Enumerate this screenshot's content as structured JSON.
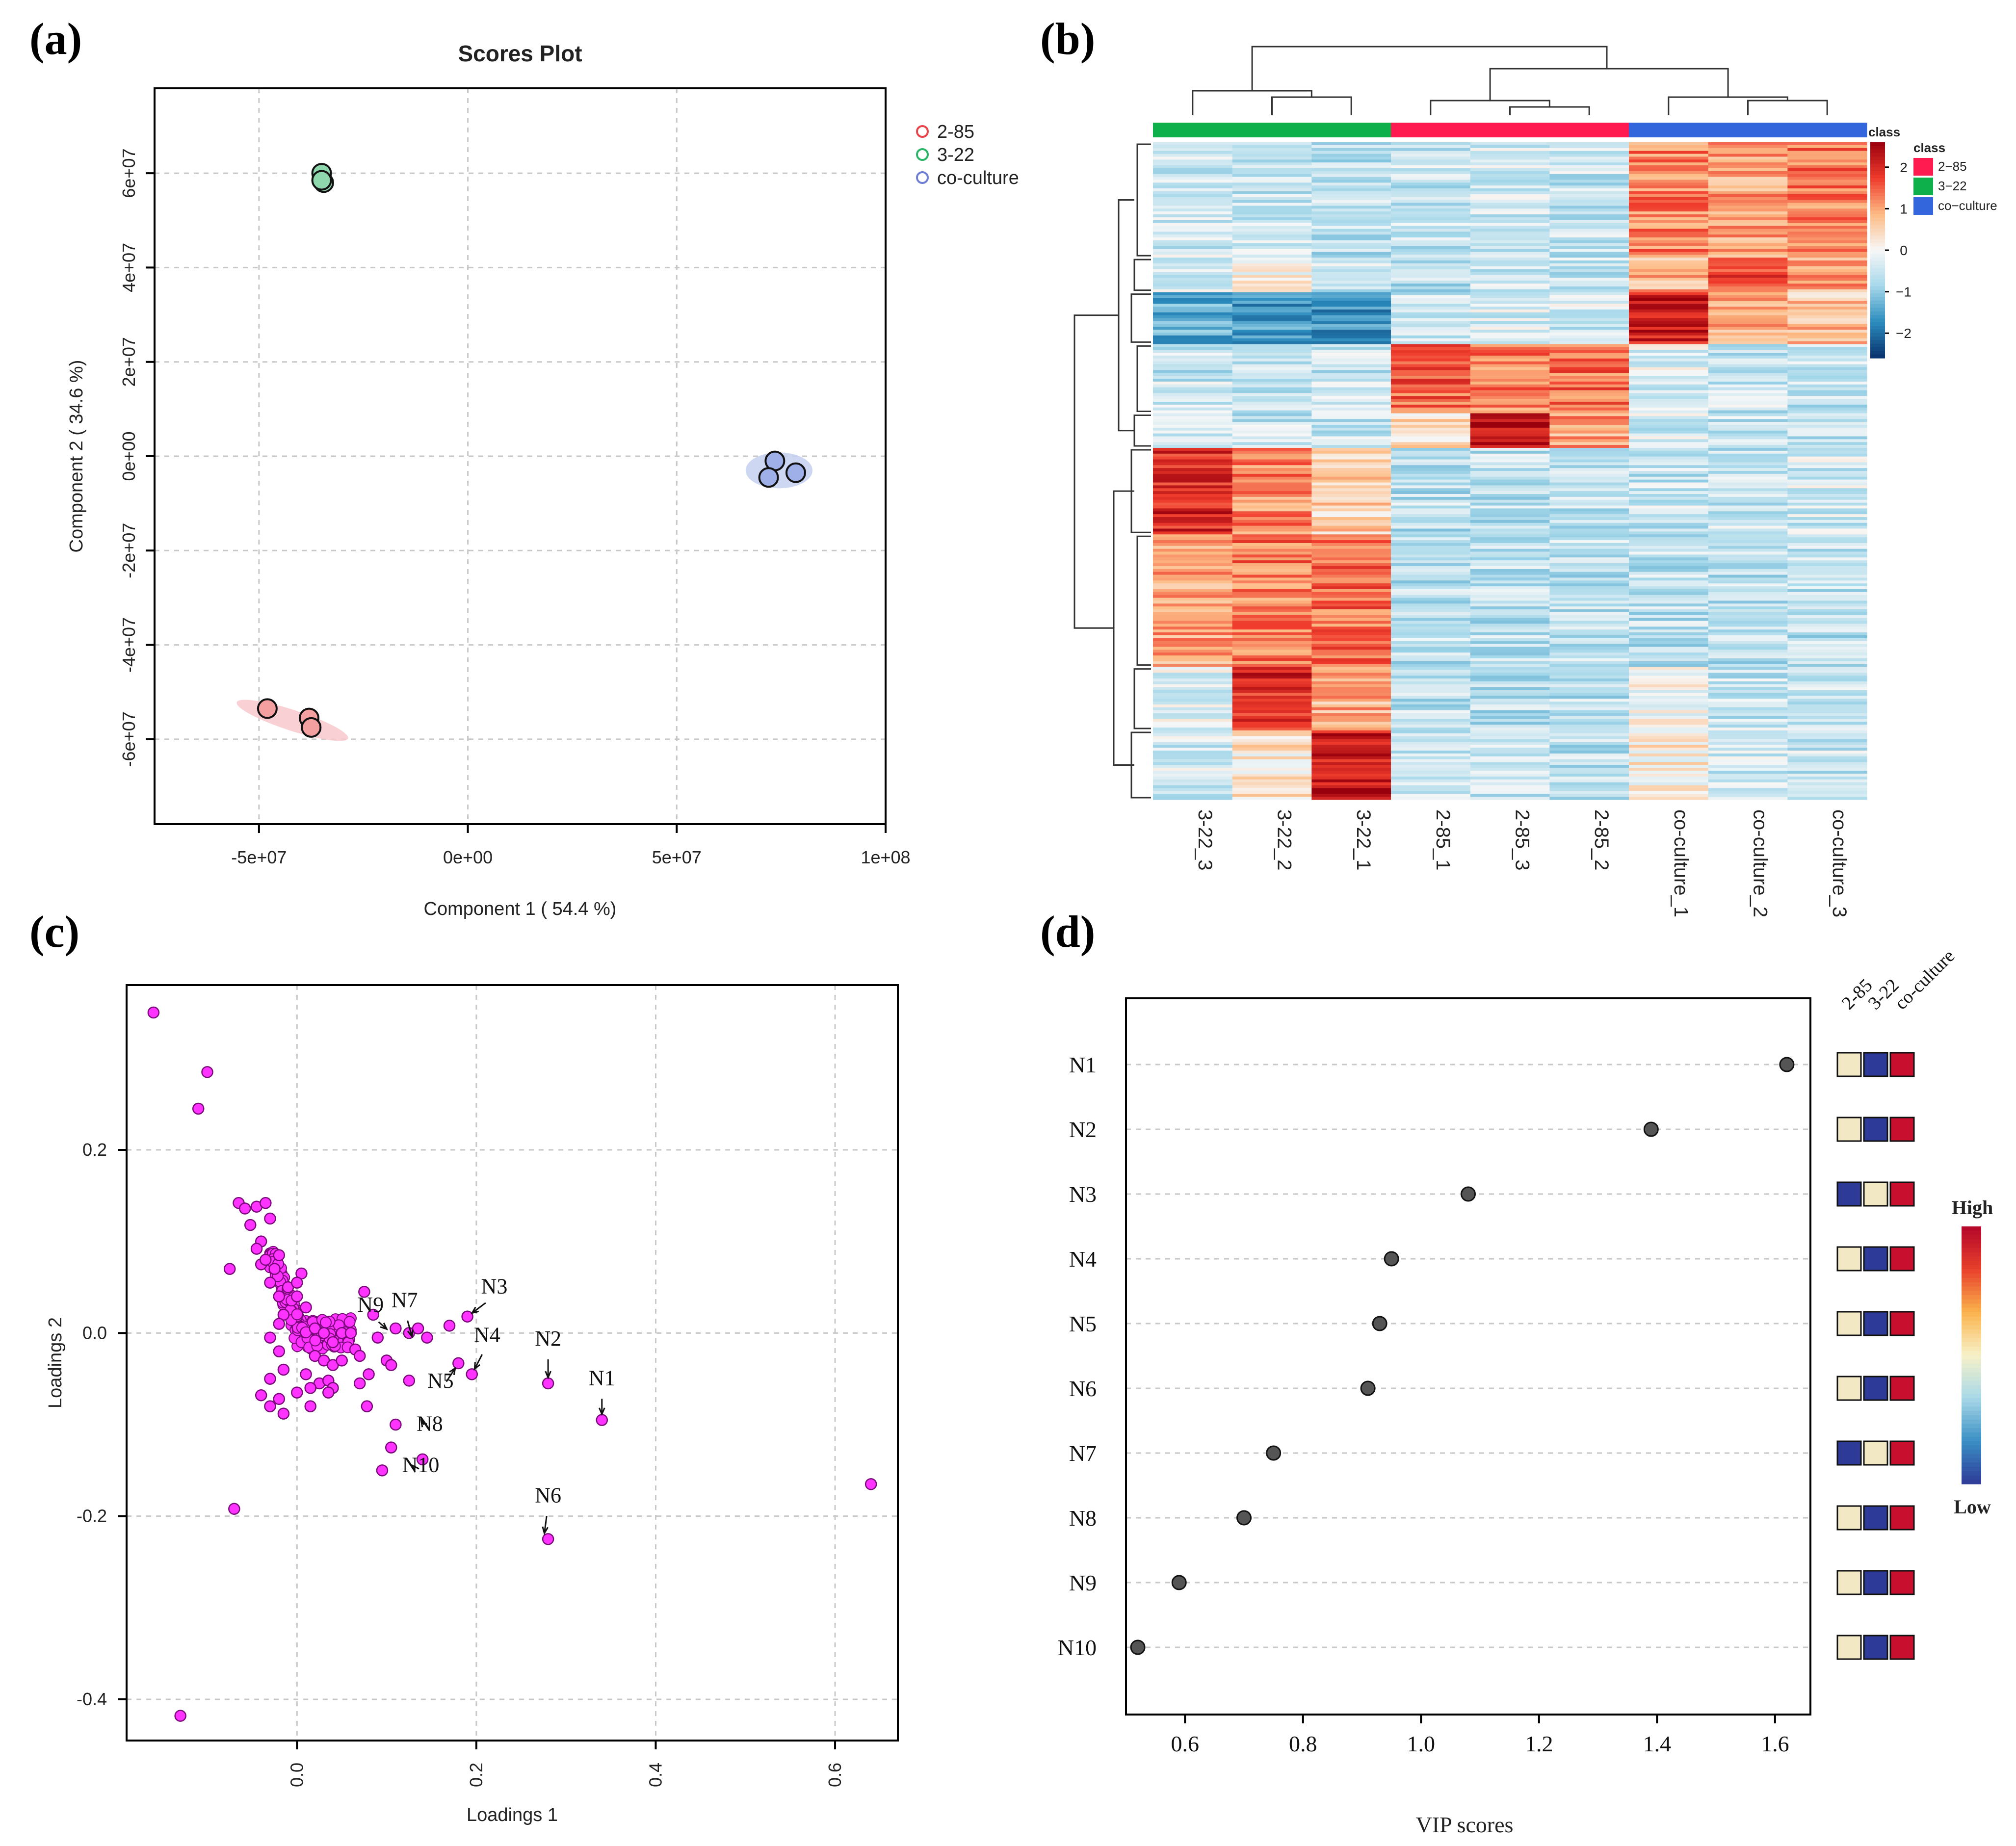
{
  "panel_labels": {
    "a": "(a)",
    "b": "(b)",
    "c": "(c)",
    "d": "(d)"
  },
  "chart_data": [
    {
      "id": "a",
      "type": "scatter",
      "title": "Scores Plot",
      "xlabel": "Component 1 ( 54.4 %)",
      "ylabel": "Component 2 ( 34.6 %)",
      "xlim": [
        -75000000.0,
        100000000.0
      ],
      "ylim": [
        -78000000.0,
        78000000.0
      ],
      "x_ticks": [
        {
          "value": -50000000.0,
          "label": "-5e+07"
        },
        {
          "value": 0,
          "label": "0e+00"
        },
        {
          "value": 50000000.0,
          "label": "5e+07"
        },
        {
          "value": 100000000.0,
          "label": "1e+08"
        }
      ],
      "y_ticks": [
        {
          "value": 60000000.0,
          "label": "6e+07"
        },
        {
          "value": 40000000.0,
          "label": "4e+07"
        },
        {
          "value": 20000000.0,
          "label": "2e+07"
        },
        {
          "value": 0,
          "label": "0e+00"
        },
        {
          "value": -20000000.0,
          "label": "-2e+07"
        },
        {
          "value": -40000000.0,
          "label": "-4e+07"
        },
        {
          "value": -60000000.0,
          "label": "-6e+07"
        }
      ],
      "legend": [
        "2-85",
        "3-22",
        "co-culture"
      ],
      "legend_position": "top-right (outside)",
      "colors": {
        "2-85": {
          "line": "#e8454a",
          "fill": "#f4a0a0",
          "ellipse": "#f8c8cc"
        },
        "3-22": {
          "line": "#2bb568",
          "fill": "#8fd8ad",
          "ellipse": "#c6ecd4"
        },
        "co-culture": {
          "line": "#6f7fd4",
          "fill": "#9fb0e8",
          "ellipse": "#c6d0f0"
        }
      },
      "series": [
        {
          "name": "2-85",
          "x": [
            -48000000.0,
            -38000000.0,
            -37500000.0
          ],
          "y": [
            -53500000.0,
            -55500000.0,
            -57500000.0
          ]
        },
        {
          "name": "3-22",
          "x": [
            -35000000.0,
            -34500000.0,
            -35000000.0
          ],
          "y": [
            60000000.0,
            58000000.0,
            58500000.0
          ]
        },
        {
          "name": "co-culture",
          "x": [
            73500000.0,
            78500000.0,
            72000000.0
          ],
          "y": [
            -1000000.0,
            -3500000.0,
            -4500000.0
          ]
        }
      ],
      "ellipses": [
        {
          "name": "2-85",
          "cx": -42000000.0,
          "cy": -56000000.0,
          "rx": 14000000.0,
          "ry": 2200000.0,
          "angle_deg": 18
        },
        {
          "name": "3-22",
          "cx": -34800000.0,
          "cy": 58800000.0,
          "rx": 1800000.0,
          "ry": 1400000.0,
          "angle_deg": 0
        },
        {
          "name": "co-culture",
          "cx": 74500000.0,
          "cy": -3000000.0,
          "rx": 8000000.0,
          "ry": 3800000.0,
          "angle_deg": 0
        }
      ]
    },
    {
      "id": "b",
      "type": "heatmap",
      "columns": [
        "3-22_3",
        "3-22_2",
        "3-22_1",
        "2-85_1",
        "2-85_3",
        "2-85_2",
        "co-culture_1",
        "co-culture_2",
        "co-culture_3"
      ],
      "column_classes": [
        "3-22",
        "3-22",
        "3-22",
        "2-85",
        "2-85",
        "2-85",
        "co-culture",
        "co-culture",
        "co-culture"
      ],
      "class_bar_label": "class",
      "legend_title": "class",
      "legend_classes": [
        {
          "name": "2−85",
          "color": "#ff1a4f"
        },
        {
          "name": "3−22",
          "color": "#0db04b"
        },
        {
          "name": "co−culture",
          "color": "#3366dd"
        }
      ],
      "colorbar": {
        "min": -2.6,
        "max": 2.6,
        "ticks": [
          {
            "value": 2,
            "label": "2"
          },
          {
            "value": 1,
            "label": "1"
          },
          {
            "value": 0,
            "label": "0"
          },
          {
            "value": -1,
            "label": "−1"
          },
          {
            "value": -2,
            "label": "−2"
          }
        ],
        "colors": [
          "#08306b",
          "#2b8cbe",
          "#a6d8ea",
          "#f7f7f7",
          "#fdbb84",
          "#ef3b2c",
          "#99000d"
        ]
      },
      "row_blocks": [
        {
          "rows": 40,
          "profile": [
            -0.4,
            -0.5,
            -0.6,
            -0.5,
            -0.4,
            -0.5,
            1.2,
            1.0,
            1.3
          ]
        },
        {
          "rows": 12,
          "profile": [
            -0.3,
            0.2,
            -0.4,
            -0.6,
            -0.5,
            -0.5,
            0.8,
            1.8,
            1.0
          ]
        },
        {
          "rows": 18,
          "profile": [
            -1.4,
            -1.5,
            -1.6,
            -0.5,
            -0.4,
            -0.4,
            2.2,
            0.9,
            0.7
          ]
        },
        {
          "rows": 24,
          "profile": [
            -0.5,
            -0.6,
            -0.5,
            1.5,
            1.3,
            1.4,
            -0.3,
            -0.5,
            -0.5
          ]
        },
        {
          "rows": 12,
          "profile": [
            -0.5,
            -0.5,
            -0.5,
            0.4,
            2.3,
            1.0,
            -0.4,
            -0.5,
            -0.5
          ]
        },
        {
          "rows": 30,
          "profile": [
            2.0,
            1.2,
            0.6,
            -0.6,
            -0.6,
            -0.6,
            -0.5,
            -0.5,
            -0.4
          ]
        },
        {
          "rows": 46,
          "profile": [
            1.0,
            1.3,
            1.4,
            -0.6,
            -0.6,
            -0.6,
            -0.6,
            -0.6,
            -0.6
          ]
        },
        {
          "rows": 22,
          "profile": [
            -0.3,
            2.0,
            0.9,
            -0.6,
            -0.6,
            -0.6,
            0.1,
            -0.5,
            -0.5
          ]
        },
        {
          "rows": 24,
          "profile": [
            -0.4,
            0.3,
            2.2,
            -0.6,
            -0.6,
            -0.6,
            0.2,
            -0.4,
            -0.5
          ]
        }
      ],
      "column_dendrogram_order": [
        "3-22_3",
        "3-22_2",
        "3-22_1",
        "2-85_1",
        "2-85_3",
        "2-85_2",
        "co-culture_1",
        "co-culture_2",
        "co-culture_3"
      ]
    },
    {
      "id": "c",
      "type": "scatter",
      "xlabel": "Loadings 1",
      "ylabel": "Loadings 2",
      "xlim": [
        -0.19,
        0.67
      ],
      "ylim": [
        -0.445,
        0.38
      ],
      "x_ticks": [
        {
          "value": 0.0,
          "label": "0.0"
        },
        {
          "value": 0.2,
          "label": "0.2"
        },
        {
          "value": 0.4,
          "label": "0.4"
        },
        {
          "value": 0.6,
          "label": "0.6"
        }
      ],
      "y_ticks": [
        {
          "value": 0.2,
          "label": "0.2"
        },
        {
          "value": 0.0,
          "label": "0.0"
        },
        {
          "value": -0.2,
          "label": "-0.2"
        },
        {
          "value": -0.4,
          "label": "-0.4"
        }
      ],
      "point_color": "#ff33ff",
      "points": [
        [
          -0.16,
          0.35
        ],
        [
          -0.1,
          0.285
        ],
        [
          -0.11,
          0.245
        ],
        [
          -0.065,
          0.142
        ],
        [
          -0.058,
          0.136
        ],
        [
          -0.045,
          0.138
        ],
        [
          -0.035,
          0.142
        ],
        [
          -0.03,
          0.125
        ],
        [
          -0.052,
          0.118
        ],
        [
          -0.04,
          0.1
        ],
        [
          -0.075,
          0.07
        ],
        [
          -0.025,
          0.07
        ],
        [
          0.005,
          0.065
        ],
        [
          -0.03,
          0.055
        ],
        [
          -0.02,
          0.04
        ],
        [
          0.0,
          0.04
        ],
        [
          0.01,
          0.028
        ],
        [
          -0.015,
          0.02
        ],
        [
          -0.02,
          0.01
        ],
        [
          0.02,
          0.005
        ],
        [
          0.03,
          0.0
        ],
        [
          -0.03,
          -0.005
        ],
        [
          0.04,
          -0.01
        ],
        [
          0.05,
          0.0
        ],
        [
          0.06,
          0.0
        ],
        [
          -0.02,
          -0.02
        ],
        [
          0.02,
          -0.025
        ],
        [
          0.03,
          -0.03
        ],
        [
          -0.015,
          -0.04
        ],
        [
          0.04,
          -0.035
        ],
        [
          -0.03,
          -0.05
        ],
        [
          0.01,
          -0.045
        ],
        [
          0.025,
          -0.055
        ],
        [
          -0.04,
          -0.068
        ],
        [
          -0.02,
          -0.072
        ],
        [
          -0.03,
          -0.08
        ],
        [
          -0.015,
          -0.088
        ],
        [
          0.0,
          -0.065
        ],
        [
          0.015,
          -0.06
        ],
        [
          0.035,
          -0.052
        ],
        [
          0.065,
          -0.018
        ],
        [
          0.075,
          0.045
        ],
        [
          0.085,
          0.02
        ],
        [
          0.09,
          -0.005
        ],
        [
          0.11,
          0.005
        ],
        [
          0.125,
          0.0
        ],
        [
          0.135,
          0.005
        ],
        [
          0.145,
          -0.005
        ],
        [
          0.17,
          0.008
        ],
        [
          0.1,
          -0.03
        ],
        [
          0.105,
          -0.035
        ],
        [
          0.08,
          -0.045
        ],
        [
          0.07,
          -0.055
        ],
        [
          0.078,
          -0.08
        ],
        [
          0.11,
          -0.1
        ],
        [
          0.105,
          -0.125
        ],
        [
          0.14,
          -0.138
        ],
        [
          0.095,
          -0.15
        ],
        [
          0.125,
          -0.052
        ],
        [
          0.18,
          -0.033
        ],
        [
          0.19,
          0.018
        ],
        [
          0.195,
          -0.045
        ],
        [
          0.28,
          -0.055
        ],
        [
          0.34,
          -0.095
        ],
        [
          0.28,
          -0.225
        ],
        [
          -0.07,
          -0.192
        ],
        [
          -0.13,
          -0.418
        ],
        [
          0.64,
          -0.165
        ],
        [
          -0.04,
          0.075
        ],
        [
          -0.035,
          0.08
        ],
        [
          -0.045,
          0.092
        ],
        [
          -0.02,
          0.085
        ],
        [
          -0.01,
          0.05
        ],
        [
          0.0,
          0.055
        ],
        [
          0.04,
          -0.06
        ],
        [
          0.05,
          -0.03
        ],
        [
          0.07,
          -0.025
        ],
        [
          0.015,
          -0.08
        ],
        [
          0.035,
          -0.065
        ]
      ],
      "dense_cluster": {
        "x_range": [
          -0.03,
          0.06
        ],
        "y_range": [
          -0.035,
          0.09
        ],
        "description": "dense cluster near origin"
      },
      "annotations": [
        {
          "label": "N1",
          "point": [
            0.34,
            -0.095
          ],
          "text_at": [
            0.34,
            -0.06
          ]
        },
        {
          "label": "N2",
          "point": [
            0.28,
            -0.055
          ],
          "text_at": [
            0.28,
            -0.017
          ]
        },
        {
          "label": "N3",
          "point": [
            0.19,
            0.018
          ],
          "text_at": [
            0.22,
            0.04
          ]
        },
        {
          "label": "N4",
          "point": [
            0.195,
            -0.045
          ],
          "text_at": [
            0.212,
            -0.013
          ]
        },
        {
          "label": "N5",
          "point": [
            0.18,
            -0.033
          ],
          "text_at": [
            0.16,
            -0.063
          ]
        },
        {
          "label": "N6",
          "point": [
            0.275,
            -0.225
          ],
          "text_at": [
            0.28,
            -0.188
          ]
        },
        {
          "label": "N7",
          "point": [
            0.13,
            -0.01
          ],
          "text_at": [
            0.12,
            0.025
          ]
        },
        {
          "label": "N8",
          "point": [
            0.135,
            -0.09
          ],
          "text_at": [
            0.148,
            -0.11
          ]
        },
        {
          "label": "N9",
          "point": [
            0.105,
            0.0
          ],
          "text_at": [
            0.082,
            0.02
          ]
        },
        {
          "label": "N10",
          "point": [
            0.125,
            -0.14
          ],
          "text_at": [
            0.138,
            -0.155
          ]
        }
      ]
    },
    {
      "id": "d",
      "type": "dot",
      "xlabel": "VIP scores",
      "xlim": [
        0.5,
        1.66
      ],
      "x_ticks": [
        {
          "value": 0.6,
          "label": "0.6"
        },
        {
          "value": 0.8,
          "label": "0.8"
        },
        {
          "value": 1.0,
          "label": "1.0"
        },
        {
          "value": 1.2,
          "label": "1.2"
        },
        {
          "value": 1.4,
          "label": "1.4"
        },
        {
          "value": 1.6,
          "label": "1.6"
        }
      ],
      "features": [
        "N1",
        "N2",
        "N3",
        "N4",
        "N5",
        "N6",
        "N7",
        "N8",
        "N9",
        "N10"
      ],
      "vip": [
        1.62,
        1.39,
        1.08,
        0.95,
        0.93,
        0.91,
        0.75,
        0.7,
        0.59,
        0.52
      ],
      "class_columns": [
        "2-85",
        "3-22",
        "co-culture"
      ],
      "level_colors": {
        "low": "#2e3a97",
        "mid": "#f3e8c4",
        "high": "#c8102e"
      },
      "levels": [
        [
          "mid",
          "low",
          "high"
        ],
        [
          "mid",
          "low",
          "high"
        ],
        [
          "low",
          "mid",
          "high"
        ],
        [
          "mid",
          "low",
          "high"
        ],
        [
          "mid",
          "low",
          "high"
        ],
        [
          "mid",
          "low",
          "high"
        ],
        [
          "low",
          "mid",
          "high"
        ],
        [
          "mid",
          "low",
          "high"
        ],
        [
          "mid",
          "low",
          "high"
        ],
        [
          "mid",
          "low",
          "high"
        ]
      ],
      "colorbar": {
        "high_label": "High",
        "low_label": "Low",
        "colors": [
          "#2e3a97",
          "#3a8fc4",
          "#a8d8e8",
          "#f7f1c8",
          "#fbb34d",
          "#e8402b",
          "#b4062a"
        ]
      }
    }
  ]
}
